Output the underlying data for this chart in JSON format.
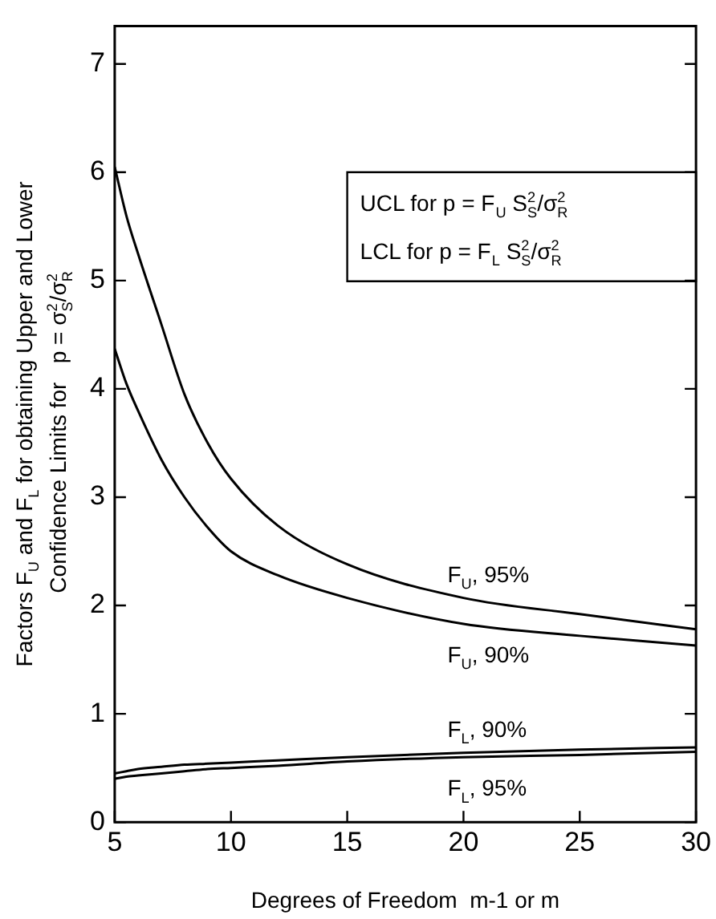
{
  "chart_data": {
    "type": "line",
    "xlabel": "Degrees of Freedom  m-1 or m",
    "ylabel": "Factors F$_{U}$ and F$_{L}$ for obtaining Upper and Lower\nConfidence Limits for   p = σ$_{S}$$^{2}$/σ$_{R}$$^{2}$",
    "annotations": [
      "UCL for p = F$_{U}$ S$_{S}$$^{2}$/σ$_{R}$$^{2}$",
      "LCL for p = F$_{L}$ S$_{S}$$^{2}$/σ$_{R}$$^{2}$"
    ],
    "x": [
      5,
      5.5,
      6,
      7,
      8,
      9,
      10,
      12,
      15,
      20,
      25,
      30
    ],
    "series": [
      {
        "name": "F$_{U}$, 95%",
        "color": "#000000",
        "values": [
          6.05,
          5.6,
          5.25,
          4.6,
          3.95,
          3.5,
          3.17,
          2.74,
          2.38,
          2.07,
          1.92,
          1.78
        ]
      },
      {
        "name": "F$_{U}$, 90%",
        "color": "#000000",
        "values": [
          4.37,
          4.05,
          3.8,
          3.35,
          3.0,
          2.72,
          2.5,
          2.28,
          2.07,
          1.83,
          1.72,
          1.63
        ]
      },
      {
        "name": "F$_{L}$, 90%",
        "color": "#000000",
        "values": [
          0.45,
          0.47,
          0.49,
          0.51,
          0.53,
          0.54,
          0.55,
          0.57,
          0.6,
          0.64,
          0.67,
          0.69
        ]
      },
      {
        "name": "F$_{L}$, 95%",
        "color": "#000000",
        "values": [
          0.4,
          0.42,
          0.43,
          0.45,
          0.47,
          0.49,
          0.5,
          0.52,
          0.56,
          0.6,
          0.62,
          0.65
        ]
      }
    ],
    "xlim": [
      5,
      30
    ],
    "xticks": [
      5,
      10,
      15,
      20,
      25,
      30
    ],
    "ylim": [
      0,
      7.35
    ],
    "yticks": [
      0,
      1,
      2,
      3,
      4,
      5,
      6,
      7
    ],
    "grid": false,
    "legend": false,
    "marker": "none",
    "line_style": "solid"
  }
}
